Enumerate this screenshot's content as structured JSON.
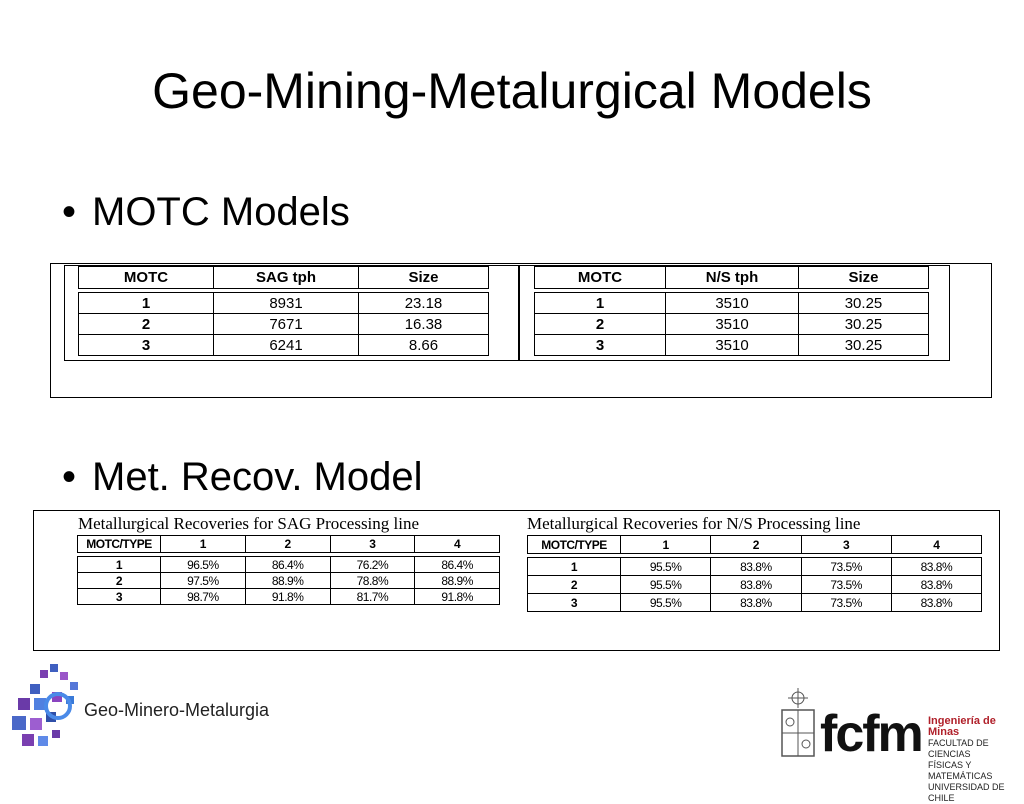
{
  "title": "Geo-Mining-Metalurgical Models",
  "bullets": [
    "MOTC Models",
    "Met. Recov. Model"
  ],
  "sag_table": {
    "headers": [
      "MOTC",
      "SAG tph",
      "Size"
    ],
    "rows": [
      [
        "1",
        "8931",
        "23.18"
      ],
      [
        "2",
        "7671",
        "16.38"
      ],
      [
        "3",
        "6241",
        "8.66"
      ]
    ]
  },
  "ns_table": {
    "headers": [
      "MOTC",
      "N/S tph",
      "Size"
    ],
    "rows": [
      [
        "1",
        "3510",
        "30.25"
      ],
      [
        "2",
        "3510",
        "30.25"
      ],
      [
        "3",
        "3510",
        "30.25"
      ]
    ]
  },
  "sag_recovery": {
    "caption": "Metallurgical Recoveries for SAG Processing line",
    "headers": [
      "MOTC/TYPE",
      "1",
      "2",
      "3",
      "4"
    ],
    "rows": [
      [
        "1",
        "96.5%",
        "86.4%",
        "76.2%",
        "86.4%"
      ],
      [
        "2",
        "97.5%",
        "88.9%",
        "78.8%",
        "88.9%"
      ],
      [
        "3",
        "98.7%",
        "91.8%",
        "81.7%",
        "91.8%"
      ]
    ]
  },
  "ns_recovery": {
    "caption": "Metallurgical Recoveries for N/S Processing line",
    "headers": [
      "MOTC/TYPE",
      "1",
      "2",
      "3",
      "4"
    ],
    "rows": [
      [
        "1",
        "95.5%",
        "83.8%",
        "73.5%",
        "83.8%"
      ],
      [
        "2",
        "95.5%",
        "83.8%",
        "73.5%",
        "83.8%"
      ],
      [
        "3",
        "95.5%",
        "83.8%",
        "73.5%",
        "83.8%"
      ]
    ]
  },
  "logos": {
    "left_text": "Geo-Minero-Metalurgia",
    "fcfm": "fcfm",
    "dept_line1": "Ingeniería de Minas",
    "dept_line2": "FACULTAD DE CIENCIAS",
    "dept_line3": "FÍSICAS Y MATEMÁTICAS",
    "dept_line4": "UNIVERSIDAD DE CHILE"
  }
}
